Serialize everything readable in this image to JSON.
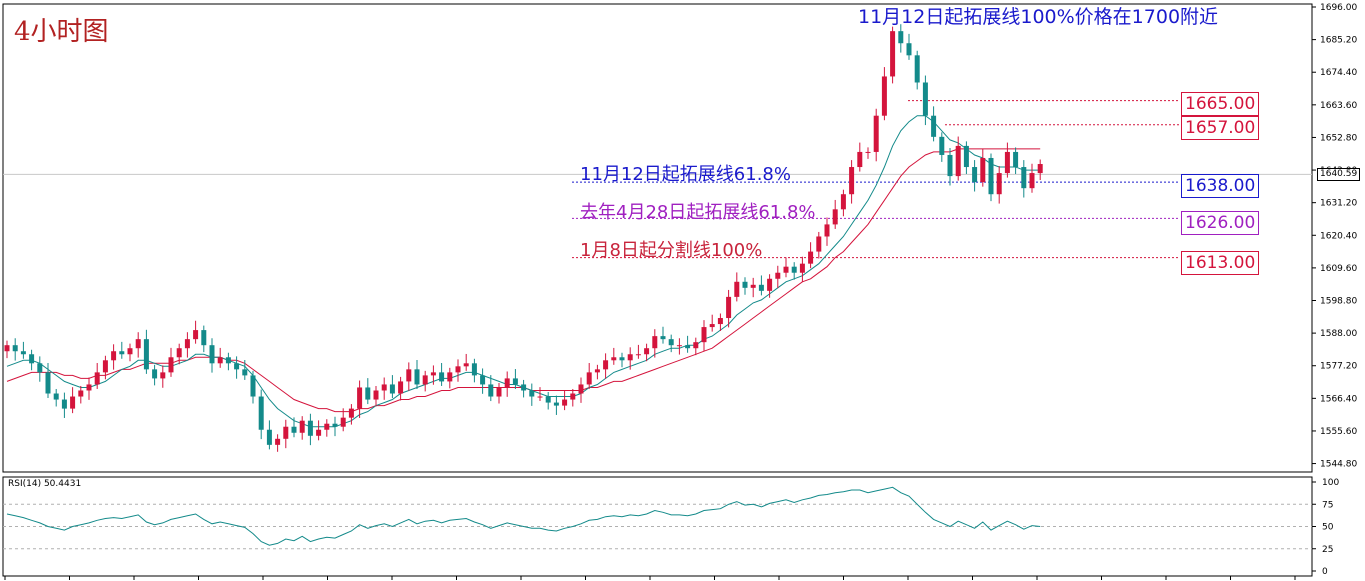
{
  "chart_data": {
    "type": "candlestick",
    "title": "4小时图",
    "subtitle": "11月12日起拓展线100%价格在1700附近",
    "ylim": [
      1543.0,
      1696.0
    ],
    "y_ticks": [
      "1696.00",
      "1685.20",
      "1674.40",
      "1663.60",
      "1652.80",
      "1642.00",
      "1631.20",
      "1620.40",
      "1609.60",
      "1598.80",
      "1588.00",
      "1577.20",
      "1566.40",
      "1555.60",
      "1544.80"
    ],
    "current_price": "1640.59",
    "annotations": [
      {
        "text": "11月12日起拓展线61.8%",
        "color": "#1a1acc"
      },
      {
        "text": "去年4月28日起拓展线61.8%",
        "color": "#a020c0"
      },
      {
        "text": "1月8日起分割线100%",
        "color": "#c8243c"
      }
    ],
    "levels": [
      {
        "label": "1665.00",
        "value": 1665.0,
        "color": "#d4143c"
      },
      {
        "label": "1657.00",
        "value": 1657.0,
        "color": "#d4143c"
      },
      {
        "label": "1638.00",
        "value": 1638.0,
        "color": "#1a1acc"
      },
      {
        "label": "1626.00",
        "value": 1626.0,
        "color": "#a020c0"
      },
      {
        "label": "1613.00",
        "value": 1613.0,
        "color": "#d4143c"
      }
    ],
    "closes": [
      1584,
      1582,
      1581,
      1578,
      1575,
      1568,
      1566,
      1563,
      1567,
      1569,
      1571,
      1575,
      1579,
      1582,
      1581,
      1583,
      1586,
      1576,
      1573,
      1575,
      1580,
      1583,
      1586,
      1589,
      1584,
      1578,
      1580,
      1578,
      1576,
      1574,
      1567,
      1556,
      1551,
      1553,
      1557,
      1555,
      1559,
      1554,
      1556,
      1558,
      1557,
      1560,
      1563,
      1570,
      1566,
      1569,
      1571,
      1568,
      1572,
      1576,
      1571,
      1574,
      1575,
      1572,
      1575,
      1577,
      1578,
      1574,
      1571,
      1567,
      1570,
      1573,
      1571,
      1569,
      1567,
      1567,
      1565,
      1564,
      1566,
      1568,
      1571,
      1575,
      1576,
      1579,
      1580,
      1579,
      1581,
      1581,
      1583,
      1587,
      1586,
      1584,
      1584,
      1583,
      1585,
      1590,
      1591,
      1593,
      1600,
      1605,
      1603,
      1604,
      1602,
      1606,
      1608,
      1610,
      1608,
      1611,
      1615,
      1620,
      1624,
      1629,
      1634,
      1643,
      1648,
      1648,
      1660,
      1673,
      1688,
      1684,
      1680,
      1671,
      1660,
      1653,
      1647,
      1640,
      1650,
      1643,
      1638,
      1646,
      1634,
      1641,
      1648,
      1643,
      1636,
      1641,
      1644
    ],
    "ma_fast": [
      1577,
      1578,
      1579,
      1579,
      1578,
      1576,
      1574,
      1572,
      1571,
      1570,
      1570,
      1571,
      1572,
      1574,
      1576,
      1577,
      1579,
      1579,
      1578,
      1577,
      1577,
      1578,
      1579,
      1581,
      1581,
      1580,
      1580,
      1579,
      1578,
      1577,
      1574,
      1570,
      1566,
      1563,
      1561,
      1559,
      1558,
      1557,
      1557,
      1557,
      1557,
      1558,
      1559,
      1561,
      1562,
      1564,
      1565,
      1566,
      1568,
      1569,
      1570,
      1571,
      1572,
      1573,
      1573,
      1574,
      1575,
      1575,
      1574,
      1573,
      1572,
      1571,
      1571,
      1570,
      1569,
      1568,
      1567,
      1567,
      1567,
      1567,
      1568,
      1570,
      1571,
      1573,
      1575,
      1576,
      1577,
      1578,
      1579,
      1581,
      1582,
      1583,
      1583,
      1584,
      1584,
      1586,
      1587,
      1589,
      1591,
      1594,
      1596,
      1598,
      1599,
      1601,
      1603,
      1605,
      1606,
      1607,
      1609,
      1611,
      1614,
      1617,
      1620,
      1624,
      1628,
      1632,
      1637,
      1643,
      1650,
      1655,
      1658,
      1660,
      1660,
      1658,
      1655,
      1652,
      1651,
      1649,
      1647,
      1646,
      1644,
      1643,
      1643,
      1643,
      1642,
      1642,
      1642
    ],
    "ma_slow": [
      1572,
      1573,
      1574,
      1575,
      1575,
      1575,
      1575,
      1574,
      1574,
      1573,
      1573,
      1574,
      1574,
      1575,
      1576,
      1576,
      1577,
      1578,
      1578,
      1578,
      1578,
      1579,
      1579,
      1580,
      1580,
      1580,
      1580,
      1579,
      1579,
      1578,
      1576,
      1574,
      1572,
      1570,
      1568,
      1566,
      1565,
      1564,
      1563,
      1563,
      1562,
      1562,
      1562,
      1563,
      1563,
      1564,
      1564,
      1565,
      1566,
      1566,
      1567,
      1567,
      1568,
      1569,
      1569,
      1570,
      1570,
      1570,
      1570,
      1570,
      1570,
      1570,
      1570,
      1570,
      1569,
      1569,
      1569,
      1569,
      1569,
      1569,
      1569,
      1570,
      1570,
      1571,
      1572,
      1572,
      1573,
      1574,
      1575,
      1576,
      1577,
      1578,
      1579,
      1580,
      1581,
      1582,
      1583,
      1585,
      1587,
      1589,
      1591,
      1593,
      1595,
      1597,
      1599,
      1601,
      1603,
      1605,
      1606,
      1608,
      1610,
      1613,
      1615,
      1618,
      1621,
      1624,
      1628,
      1632,
      1636,
      1640,
      1643,
      1645,
      1647,
      1648,
      1648,
      1648,
      1649,
      1649,
      1649,
      1649,
      1649,
      1649,
      1649,
      1649,
      1649,
      1649,
      1649
    ],
    "rsi": {
      "label": "RSI(14) 50.4431",
      "ylim": [
        0,
        100
      ],
      "ticks": [
        "100",
        "75",
        "50",
        "25",
        "0"
      ],
      "values": [
        64,
        62,
        60,
        57,
        54,
        50,
        48,
        46,
        50,
        52,
        54,
        57,
        59,
        60,
        59,
        61,
        63,
        55,
        52,
        54,
        58,
        60,
        62,
        64,
        58,
        53,
        55,
        53,
        51,
        49,
        42,
        33,
        29,
        31,
        36,
        34,
        39,
        33,
        36,
        38,
        37,
        41,
        45,
        52,
        48,
        51,
        53,
        50,
        54,
        58,
        53,
        56,
        57,
        54,
        57,
        58,
        59,
        55,
        52,
        48,
        51,
        54,
        52,
        50,
        48,
        48,
        46,
        45,
        48,
        50,
        53,
        57,
        58,
        61,
        62,
        61,
        63,
        62,
        64,
        68,
        66,
        63,
        63,
        62,
        64,
        68,
        69,
        70,
        75,
        78,
        74,
        75,
        72,
        76,
        78,
        80,
        77,
        80,
        82,
        85,
        86,
        88,
        89,
        91,
        91,
        88,
        90,
        92,
        94,
        88,
        84,
        75,
        66,
        58,
        54,
        50,
        56,
        52,
        48,
        55,
        46,
        51,
        56,
        52,
        47,
        51,
        50
      ]
    },
    "x_labels": []
  }
}
